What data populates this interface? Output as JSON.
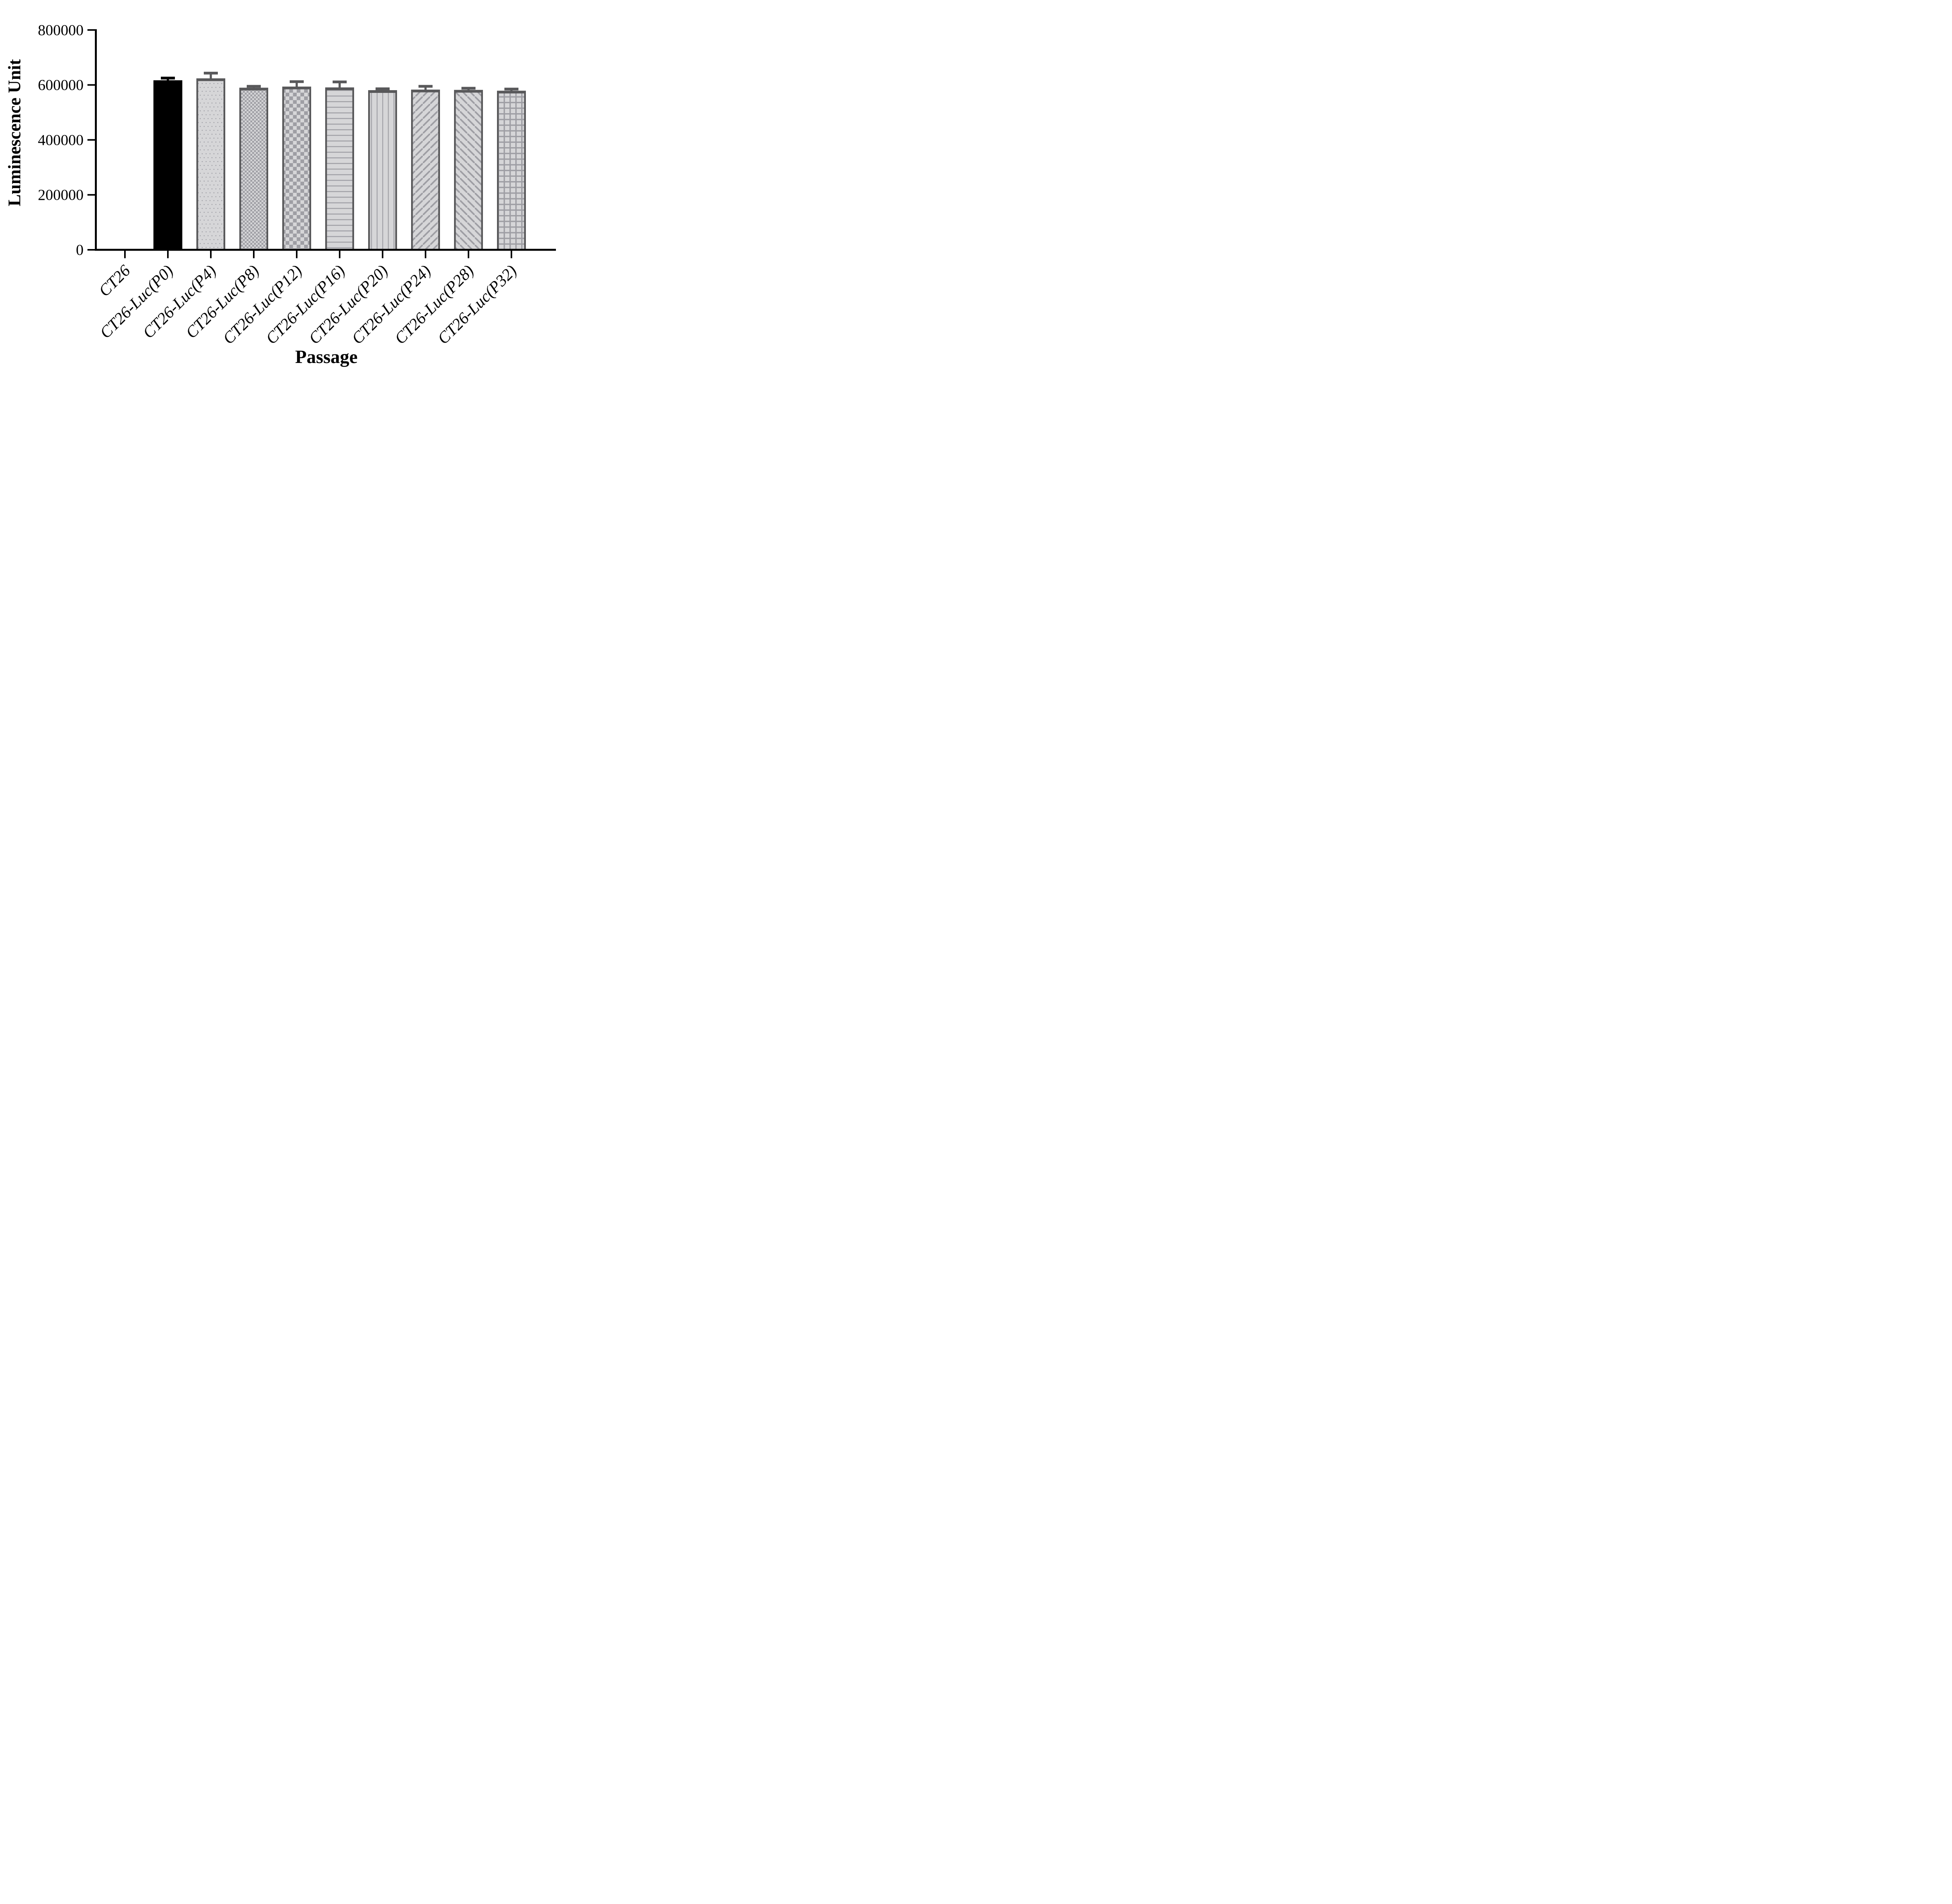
{
  "chart_data": {
    "type": "bar",
    "title": "",
    "xlabel": "Passage",
    "ylabel": "Luminescence Unit",
    "ylim": [
      0,
      800000
    ],
    "yticks": [
      0,
      200000,
      400000,
      600000,
      800000
    ],
    "ytick_labels": [
      "0",
      "200000",
      "400000",
      "600000",
      "800000"
    ],
    "categories": [
      "CT26",
      "CT26-Luc(P0)",
      "CT26-Luc(P4)",
      "CT26-Luc(P8)",
      "CT26-Luc(P12)",
      "CT26-Luc(P16)",
      "CT26-Luc(P20)",
      "CT26-Luc(P24)",
      "CT26-Luc(P28)",
      "CT26-Luc(P32)"
    ],
    "values": [
      0,
      617000,
      624000,
      590000,
      594000,
      591000,
      581000,
      583000,
      582000,
      579000
    ],
    "errors_sd": [
      0,
      8000,
      19000,
      5000,
      18000,
      20000,
      5000,
      12000,
      6000,
      6000
    ],
    "error_bar_style": "mean + SD, upper whisker with cap",
    "bar_patterns": [
      "none",
      "solid-black",
      "dots",
      "checker-small",
      "checker-large",
      "horizontal-lines",
      "vertical-lines",
      "diagonal-up",
      "diagonal-down",
      "grid"
    ],
    "colors": {
      "bar_black": "#000000",
      "bar_fill": "#d6d6d8",
      "pattern_gray": "#9e9ea4",
      "bar_border": "#58585a",
      "axis": "#000000",
      "background": "#ffffff"
    },
    "legend": null,
    "grid": false
  }
}
